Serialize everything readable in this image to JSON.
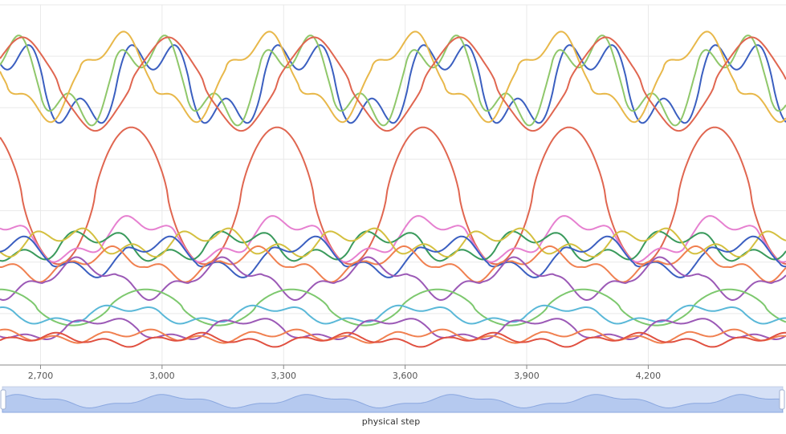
{
  "chart_data": {
    "type": "line",
    "title": "",
    "xlabel": "physical step",
    "ylabel": "",
    "xlim": [
      2600,
      4540
    ],
    "ylim": [
      0,
      1
    ],
    "grid": true,
    "legend": "none",
    "x_ticks": [
      "2,700",
      "3,000",
      "3,300",
      "3,600",
      "3,900",
      "4,200"
    ],
    "x_tick_values": [
      2700,
      3000,
      3300,
      3600,
      3900,
      4200
    ],
    "has_data_zoom_slider": true,
    "series": [
      {
        "color": "#3b5fc0",
        "mean": 0.78,
        "amp": 0.09,
        "period": 360,
        "phase": 0.2,
        "detail": 0.05
      },
      {
        "color": "#8fc76a",
        "mean": 0.79,
        "amp": 0.09,
        "period": 360,
        "phase": 0.22,
        "detail": 0.05
      },
      {
        "color": "#e8b84a",
        "mean": 0.8,
        "amp": 0.1,
        "period": 360,
        "phase": 0.45,
        "detail": 0.03
      },
      {
        "color": "#e06650",
        "mean": 0.78,
        "amp": 0.12,
        "period": 360,
        "phase": 0.1,
        "detail": 0.01
      },
      {
        "color": "#e06650",
        "mean": 0.47,
        "amp": 0.19,
        "period": 360,
        "phase": 0.35,
        "detail": 0.0
      },
      {
        "color": "#e680d0",
        "mean": 0.35,
        "amp": 0.05,
        "period": 360,
        "phase": 0.3,
        "detail": 0.02
      },
      {
        "color": "#3a9a5c",
        "mean": 0.33,
        "amp": 0.03,
        "period": 360,
        "phase": 0.6,
        "detail": 0.02
      },
      {
        "color": "#d4c040",
        "mean": 0.34,
        "amp": 0.025,
        "period": 360,
        "phase": 0.8,
        "detail": 0.02
      },
      {
        "color": "#3b5fc0",
        "mean": 0.3,
        "amp": 0.04,
        "period": 360,
        "phase": 0.15,
        "detail": 0.02
      },
      {
        "color": "#f08050",
        "mean": 0.28,
        "amp": 0.03,
        "period": 360,
        "phase": 0.5,
        "detail": 0.02
      },
      {
        "color": "#9b59b6",
        "mean": 0.24,
        "amp": 0.04,
        "period": 360,
        "phase": 0.7,
        "detail": 0.02
      },
      {
        "color": "#7dc86e",
        "mean": 0.16,
        "amp": 0.05,
        "period": 360,
        "phase": 0.25,
        "detail": 0.0
      },
      {
        "color": "#5ab8d8",
        "mean": 0.14,
        "amp": 0.02,
        "period": 360,
        "phase": 0.4,
        "detail": 0.01
      },
      {
        "color": "#9b59b6",
        "mean": 0.1,
        "amp": 0.025,
        "period": 360,
        "phase": 0.55,
        "detail": 0.01
      },
      {
        "color": "#f08050",
        "mean": 0.08,
        "amp": 0.01,
        "period": 360,
        "phase": 0.3,
        "detail": 0.01
      },
      {
        "color": "#e05040",
        "mean": 0.07,
        "amp": 0.01,
        "period": 360,
        "phase": 0.9,
        "detail": 0.01
      }
    ]
  }
}
